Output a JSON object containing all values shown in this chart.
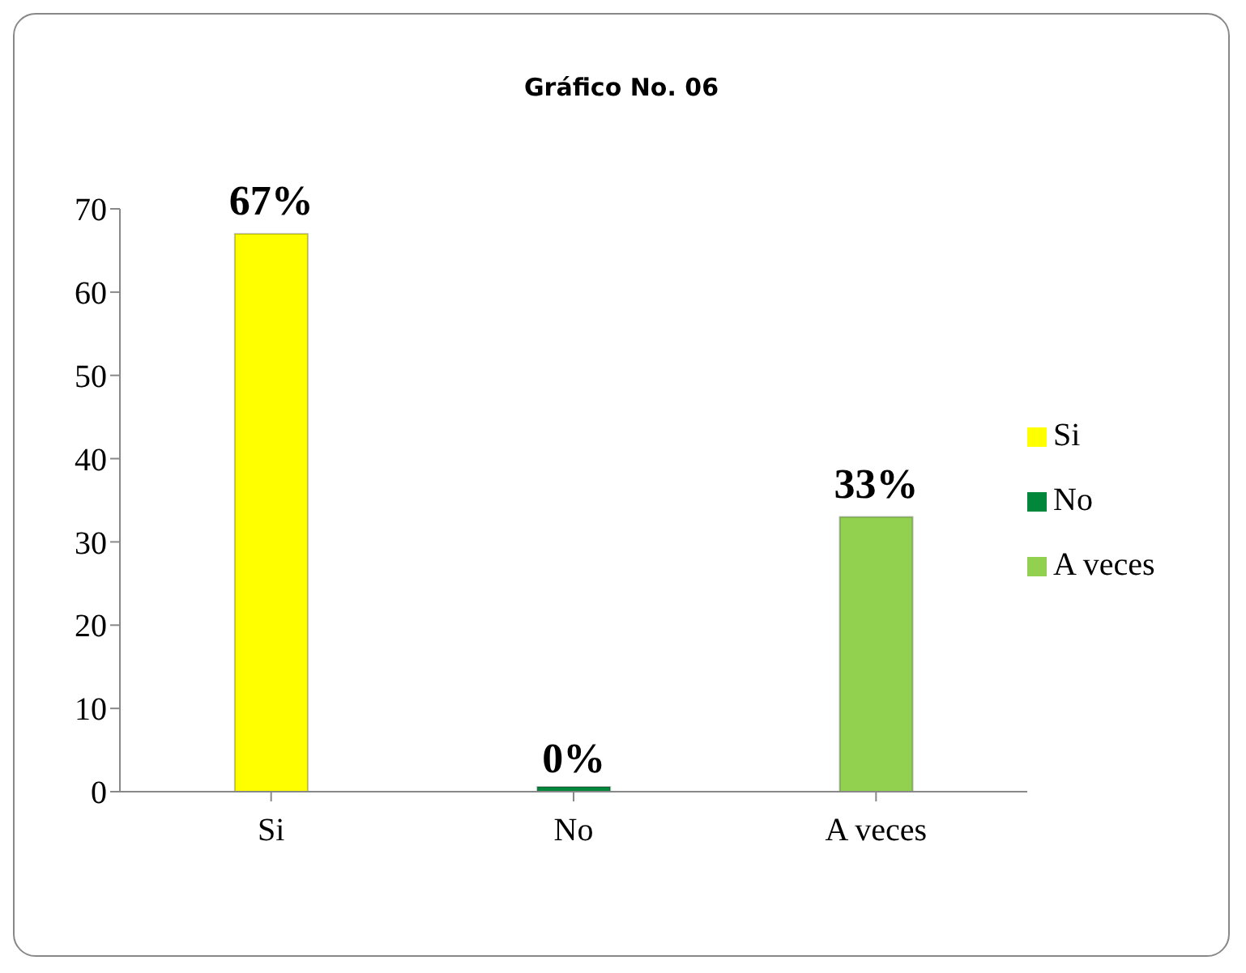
{
  "chart_data": {
    "type": "bar",
    "title": "Gráfico No. 06",
    "categories": [
      "Si",
      "No",
      "A veces"
    ],
    "series": [
      {
        "name": "Si",
        "color": "#ffff00",
        "values": [
          67,
          null,
          null
        ],
        "value_labels": [
          "67%",
          null,
          null
        ]
      },
      {
        "name": "No",
        "color": "#00873c",
        "values": [
          null,
          0,
          null
        ],
        "value_labels": [
          null,
          "0%",
          null
        ]
      },
      {
        "name": "A veces",
        "color": "#92d050",
        "values": [
          null,
          null,
          33
        ],
        "value_labels": [
          null,
          null,
          "33%"
        ]
      }
    ],
    "stacked": true,
    "ylim": [
      0,
      70
    ],
    "yticks": [
      0,
      10,
      20,
      30,
      40,
      50,
      60,
      70
    ],
    "grid": false,
    "legend": "right"
  }
}
